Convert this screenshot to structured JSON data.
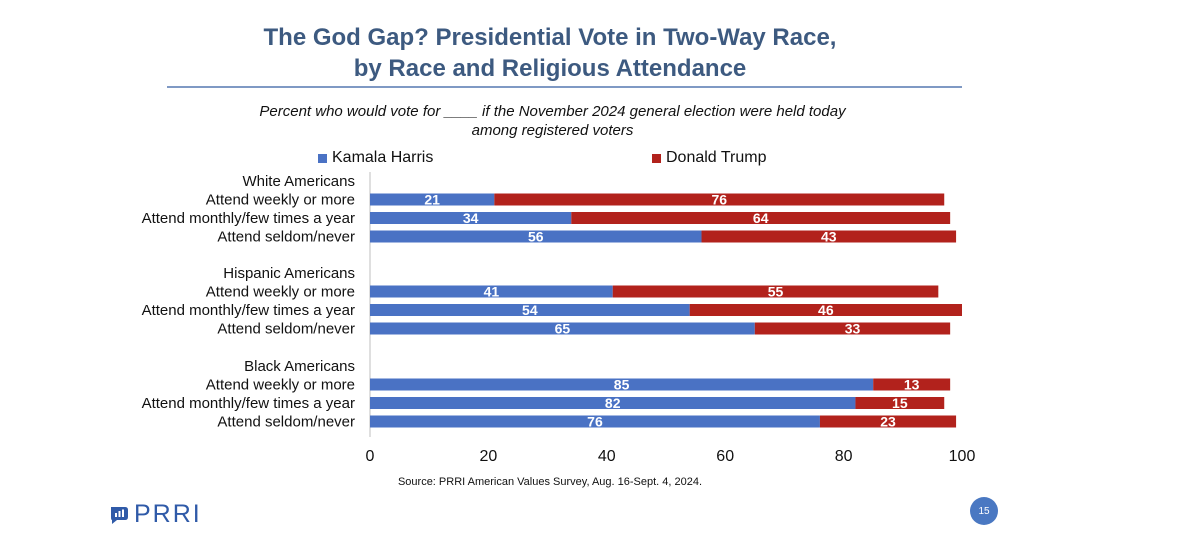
{
  "chart_data": {
    "type": "bar",
    "orientation": "horizontal",
    "stacked": true,
    "title_line1": "The God Gap? Presidential Vote in Two-Way Race,",
    "title_line2": "by Race and Religious Attendance",
    "subtitle_line1": "Percent who would vote for ____ if the November 2024 general election were held today",
    "subtitle_line2": "among registered voters",
    "xlim": [
      0,
      100
    ],
    "xticks": [
      "0",
      "20",
      "40",
      "60",
      "80",
      "100"
    ],
    "legend_placement": "top",
    "groups": [
      {
        "label": "White Americans",
        "rows": [
          {
            "label": "Attend weekly or more",
            "values": [
              21,
              76
            ]
          },
          {
            "label": "Attend monthly/few times a year",
            "values": [
              34,
              64
            ]
          },
          {
            "label": "Attend seldom/never",
            "values": [
              56,
              43
            ]
          }
        ]
      },
      {
        "label": "Hispanic Americans",
        "rows": [
          {
            "label": "Attend weekly or more",
            "values": [
              41,
              55
            ]
          },
          {
            "label": "Attend monthly/few times a year",
            "values": [
              54,
              46
            ]
          },
          {
            "label": "Attend seldom/never",
            "values": [
              65,
              33
            ]
          }
        ]
      },
      {
        "label": "Black Americans",
        "rows": [
          {
            "label": "Attend weekly or more",
            "values": [
              85,
              13
            ]
          },
          {
            "label": "Attend monthly/few times a year",
            "values": [
              82,
              15
            ]
          },
          {
            "label": "Attend seldom/never",
            "values": [
              76,
              23
            ]
          }
        ]
      }
    ],
    "series": [
      {
        "name": "Kamala Harris",
        "color": "#4a72c4"
      },
      {
        "name": "Donald Trump",
        "color": "#b2221c"
      }
    ]
  },
  "source": "Source: PRRI American Values Survey, Aug. 16-Sept. 4, 2024.",
  "logo_text": "PRRI",
  "page_number": "15"
}
